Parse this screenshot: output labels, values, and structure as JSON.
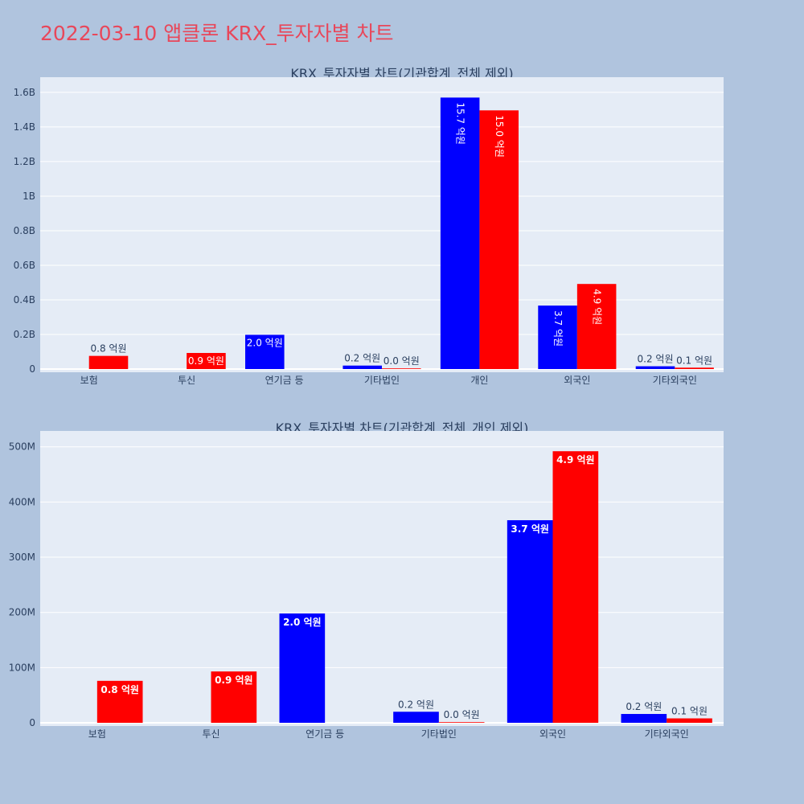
{
  "page": {
    "title": "2022-03-10 앱클론 KRX_투자자별 차트"
  },
  "colors": {
    "background": "#b0c4de",
    "plot_background": "#e5ecf6",
    "title": "#e8475a",
    "sell": "#0000ff",
    "buy": "#ff0000"
  },
  "chart_data": [
    {
      "type": "bar",
      "title": "KRX_투자자별 차트(기관합계_전체 제외)",
      "categories": [
        "보험",
        "투신",
        "연기금 등",
        "기타법인",
        "개인",
        "외국인",
        "기타외국인"
      ],
      "series": [
        {
          "color": "#0000ff",
          "values": [
            null,
            null,
            198000000,
            20000000,
            1570000000,
            367000000,
            16000000
          ],
          "labels": [
            "",
            "",
            "2.0 억원",
            "0.2 억원",
            "15.7 억원",
            "3.7 억원",
            "0.2 억원"
          ]
        },
        {
          "color": "#ff0000",
          "values": [
            76000000,
            93000000,
            null,
            1000000,
            1496000000,
            492000000,
            8000000
          ],
          "labels": [
            "0.8 억원",
            "0.9 억원",
            "",
            "0.0 억원",
            "15.0 억원",
            "4.9 억원",
            "0.1 억원"
          ]
        }
      ],
      "ylim": [
        0,
        1660000000
      ],
      "yticks": [
        0,
        200000000,
        400000000,
        600000000,
        800000000,
        1000000000,
        1200000000,
        1400000000,
        1600000000
      ],
      "ytick_labels": [
        "0",
        "0.2B",
        "0.4B",
        "0.6B",
        "0.8B",
        "1B",
        "1.2B",
        "1.4B",
        "1.6B"
      ],
      "grid": true,
      "legend": "none"
    },
    {
      "type": "bar",
      "title": "KRX_투자자별 차트(기관합계_전체_개인 제외)",
      "categories": [
        "보험",
        "투신",
        "연기금 등",
        "기타법인",
        "외국인",
        "기타외국인"
      ],
      "series": [
        {
          "color": "#0000ff",
          "values": [
            null,
            null,
            198000000,
            20000000,
            367000000,
            16000000
          ],
          "labels": [
            "",
            "",
            "2.0 억원",
            "0.2 억원",
            "3.7 억원",
            "0.2 억원"
          ]
        },
        {
          "color": "#ff0000",
          "values": [
            76000000,
            93000000,
            null,
            1000000,
            492000000,
            8000000
          ],
          "labels": [
            "0.8 억원",
            "0.9 억원",
            "",
            "0.0 억원",
            "4.9 억원",
            "0.1 억원"
          ]
        }
      ],
      "ylim": [
        0,
        520000000
      ],
      "yticks": [
        0,
        100000000,
        200000000,
        300000000,
        400000000,
        500000000
      ],
      "ytick_labels": [
        "0",
        "100M",
        "200M",
        "300M",
        "400M",
        "500M"
      ],
      "grid": true,
      "legend": "none"
    }
  ]
}
